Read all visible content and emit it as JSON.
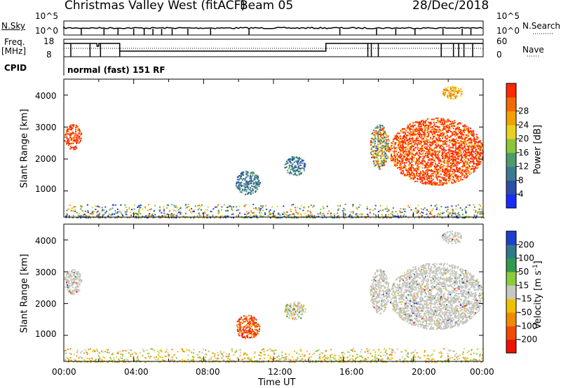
{
  "header": {
    "station": "Christmas Valley West (fitACF)",
    "beam": "Beam 05",
    "date": "28/Dec/2018"
  },
  "params": {
    "nsky_label": "N.Sky",
    "nsearch_label": "N.Search",
    "freq_label_1": "Freq.",
    "freq_label_2": "[MHz]",
    "nave_label": "Nave",
    "cpid_label": "CPID",
    "cpid_value": "normal (fast) 151 RF",
    "noise_ticks_left": [
      "10^5",
      "10^0"
    ],
    "noise_ticks_right": [
      "10^5",
      "10^0"
    ],
    "freq_ticks": [
      "18",
      "8"
    ],
    "nave_ticks": [
      "60",
      "0"
    ]
  },
  "chart_data": [
    {
      "type": "heatmap",
      "name": "power",
      "ylabel": "Slant Range [km]",
      "ylim": [
        180,
        4500
      ],
      "yticks": [
        "1000",
        "2000",
        "3000",
        "4000"
      ],
      "colorbar": {
        "label": "Power [dB]",
        "range": [
          0,
          32
        ],
        "ticks": [
          "4",
          "8",
          "12",
          "16",
          "20",
          "24",
          "28"
        ],
        "colors": [
          "#1a2bff",
          "#2b4fa8",
          "#3a7a8e",
          "#4f9a6a",
          "#8cc63a",
          "#e8d020",
          "#f5a000",
          "#f26a00",
          "#ff2800"
        ]
      },
      "regions": [
        {
          "t": [
            0.0,
            1.0
          ],
          "r": [
            2300,
            3100
          ],
          "level": "high"
        },
        {
          "t": [
            9.8,
            11.2
          ],
          "r": [
            900,
            1650
          ],
          "level": "low"
        },
        {
          "t": [
            12.6,
            13.8
          ],
          "r": [
            1500,
            2100
          ],
          "level": "low"
        },
        {
          "t": [
            17.5,
            18.6
          ],
          "r": [
            1700,
            3100
          ],
          "level": "mixed"
        },
        {
          "t": [
            18.6,
            24.0
          ],
          "r": [
            1200,
            3300
          ],
          "level": "high"
        },
        {
          "t": [
            21.6,
            22.8
          ],
          "r": [
            3900,
            4300
          ],
          "level": "mid"
        },
        {
          "t": [
            0.0,
            24.0
          ],
          "r": [
            180,
            600
          ],
          "level": "ground"
        }
      ]
    },
    {
      "type": "heatmap",
      "name": "velocity",
      "xlabel": "Time UT",
      "ylabel": "Slant Range [km]",
      "ylim": [
        180,
        4500
      ],
      "xlim": [
        "00:00",
        "00:00"
      ],
      "xticks": [
        "00:00",
        "04:00",
        "08:00",
        "12:00",
        "16:00",
        "20:00",
        "00:00"
      ],
      "yticks": [
        "1000",
        "2000",
        "3000",
        "4000"
      ],
      "colorbar": {
        "label": "Velocity [m s",
        "label_sup": "-1",
        "label_end": "]",
        "ticks": [
          "200",
          "100",
          "50",
          "15",
          "-15",
          "-50",
          "-100",
          "-200"
        ],
        "colors": [
          "#1d3fcf",
          "#2e7a8a",
          "#2f9a4c",
          "#8ccc3c",
          "#c8c8c0",
          "#f0c000",
          "#f28a00",
          "#f24a00",
          "#ee1000"
        ]
      },
      "regions": [
        {
          "t": [
            0.0,
            1.0
          ],
          "r": [
            2300,
            3100
          ],
          "level": "gs"
        },
        {
          "t": [
            9.8,
            11.2
          ],
          "r": [
            900,
            1650
          ],
          "level": "away"
        },
        {
          "t": [
            12.6,
            13.8
          ],
          "r": [
            1500,
            2100
          ],
          "level": "mixed"
        },
        {
          "t": [
            17.5,
            18.6
          ],
          "r": [
            1700,
            3100
          ],
          "level": "gs"
        },
        {
          "t": [
            18.6,
            24.0
          ],
          "r": [
            1200,
            3300
          ],
          "level": "gs"
        },
        {
          "t": [
            21.6,
            22.8
          ],
          "r": [
            3900,
            4300
          ],
          "level": "gs"
        },
        {
          "t": [
            0.0,
            24.0
          ],
          "r": [
            180,
            600
          ],
          "level": "ground"
        }
      ]
    }
  ]
}
